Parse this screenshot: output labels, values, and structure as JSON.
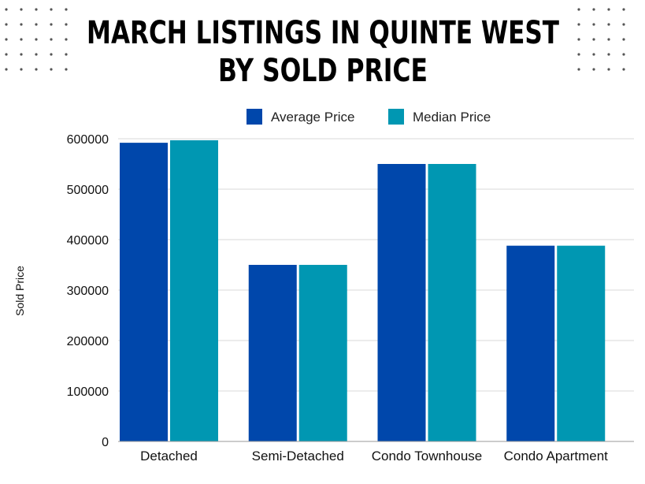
{
  "chart_data": {
    "type": "bar",
    "title": "MARCH LISTINGS IN QUINTE WEST",
    "subtitle": "BY SOLD PRICE",
    "xlabel": "",
    "ylabel": "Sold Price",
    "ylim": [
      0,
      600000
    ],
    "yticks": [
      0,
      100000,
      200000,
      300000,
      400000,
      500000,
      600000
    ],
    "grid": true,
    "legend_position": "top-center",
    "categories": [
      "Detached",
      "Semi-Detached",
      "Condo Townhouse",
      "Condo Apartment"
    ],
    "series": [
      {
        "name": "Average Price",
        "color": "#0047ab",
        "values": [
          592000,
          350000,
          550000,
          388000
        ]
      },
      {
        "name": "Median Price",
        "color": "#0097b2",
        "values": [
          597000,
          350000,
          550000,
          388000
        ]
      }
    ]
  }
}
